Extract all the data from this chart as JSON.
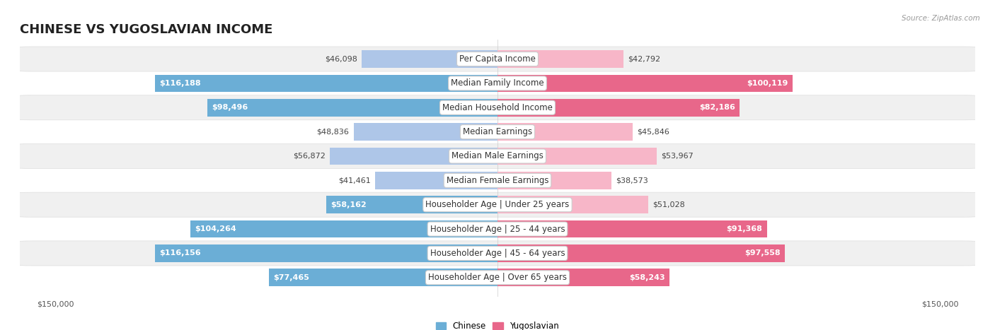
{
  "title": "CHINESE VS YUGOSLAVIAN INCOME",
  "source": "Source: ZipAtlas.com",
  "max_value": 150000,
  "categories": [
    "Per Capita Income",
    "Median Family Income",
    "Median Household Income",
    "Median Earnings",
    "Median Male Earnings",
    "Median Female Earnings",
    "Householder Age | Under 25 years",
    "Householder Age | 25 - 44 years",
    "Householder Age | 45 - 64 years",
    "Householder Age | Over 65 years"
  ],
  "chinese_values": [
    46098,
    116188,
    98496,
    48836,
    56872,
    41461,
    58162,
    104264,
    116156,
    77465
  ],
  "yugoslavian_values": [
    42792,
    100119,
    82186,
    45846,
    53967,
    38573,
    51028,
    91368,
    97558,
    58243
  ],
  "chinese_color_light": "#aec6e8",
  "chinese_color_dark": "#6baed6",
  "yugoslavian_color_light": "#f7b6c8",
  "yugoslavian_color_dark": "#e8678a",
  "bg_color": "#ffffff",
  "row_bg": "#f0f0f0",
  "bar_height": 0.72,
  "title_fontsize": 13,
  "label_fontsize": 8.5,
  "value_fontsize": 8,
  "axis_fontsize": 8,
  "white_text_threshold": 0.38
}
